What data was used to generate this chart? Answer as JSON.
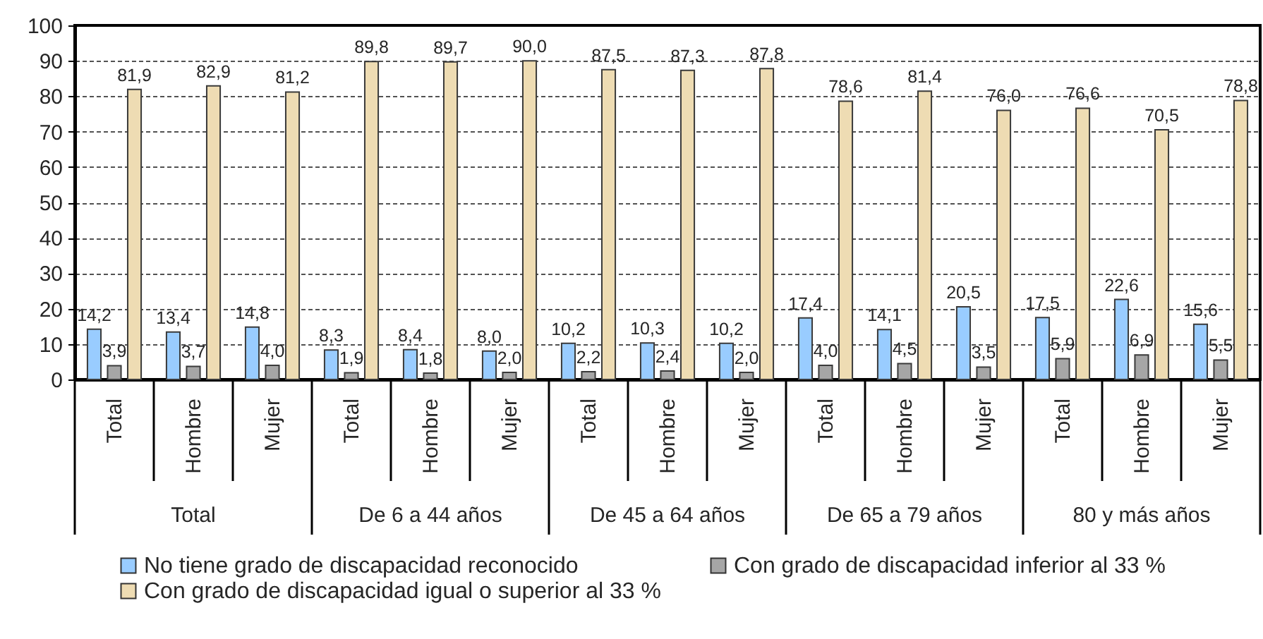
{
  "chart_data": {
    "type": "bar",
    "categories": [
      "Total",
      "Hombre",
      "Mujer",
      "Total",
      "Hombre",
      "Mujer",
      "Total",
      "Hombre",
      "Mujer",
      "Total",
      "Hombre",
      "Mujer",
      "Total",
      "Hombre",
      "Mujer"
    ],
    "annotations": [
      "Total",
      "De 6 a 44 años",
      "De 45 a 64 años",
      "De 65 a 79 años",
      "80 y más años"
    ],
    "series": [
      {
        "name": "No tiene grado de discapacidad reconocido",
        "color": "#99ccff",
        "values": [
          14.2,
          13.4,
          14.8,
          8.3,
          8.4,
          8.0,
          10.2,
          10.3,
          10.2,
          17.4,
          14.1,
          20.5,
          17.5,
          22.6,
          15.6
        ],
        "value_labels": [
          "14,2",
          "13,4",
          "14,8",
          "8,3",
          "8,4",
          "8,0",
          "10,2",
          "10,3",
          "10,2",
          "17,4",
          "14,1",
          "20,5",
          "17,5",
          "22,6",
          "15,6"
        ]
      },
      {
        "name": "Con grado de discapacidad inferior al 33 %",
        "color": "#a6a6a6",
        "values": [
          3.9,
          3.7,
          4.0,
          1.9,
          1.8,
          2.0,
          2.2,
          2.4,
          2.0,
          4.0,
          4.5,
          3.5,
          5.9,
          6.9,
          5.5
        ],
        "value_labels": [
          "3,9",
          "3,7",
          "4,0",
          "1,9",
          "1,8",
          "2,0",
          "2,2",
          "2,4",
          "2,0",
          "4,0",
          "4,5",
          "3,5",
          "5,9",
          "6,9",
          "5,5"
        ]
      },
      {
        "name": "Con grado de discapacidad igual o superior al 33 %",
        "color": "#eedcb3",
        "values": [
          81.9,
          82.9,
          81.2,
          89.8,
          89.7,
          90.0,
          87.5,
          87.3,
          87.8,
          78.6,
          81.4,
          76.0,
          76.6,
          70.5,
          78.8
        ],
        "value_labels": [
          "81,9",
          "82,9",
          "81,2",
          "89,8",
          "89,7",
          "90,0",
          "87,5",
          "87,3",
          "87,8",
          "78,6",
          "81,4",
          "76,0",
          "76,6",
          "70,5",
          "78,8"
        ]
      }
    ],
    "ylim": [
      0,
      100
    ],
    "yticks": [
      0,
      10,
      20,
      30,
      40,
      50,
      60,
      70,
      80,
      90,
      100
    ],
    "grid": "y",
    "legend": "bottom"
  }
}
